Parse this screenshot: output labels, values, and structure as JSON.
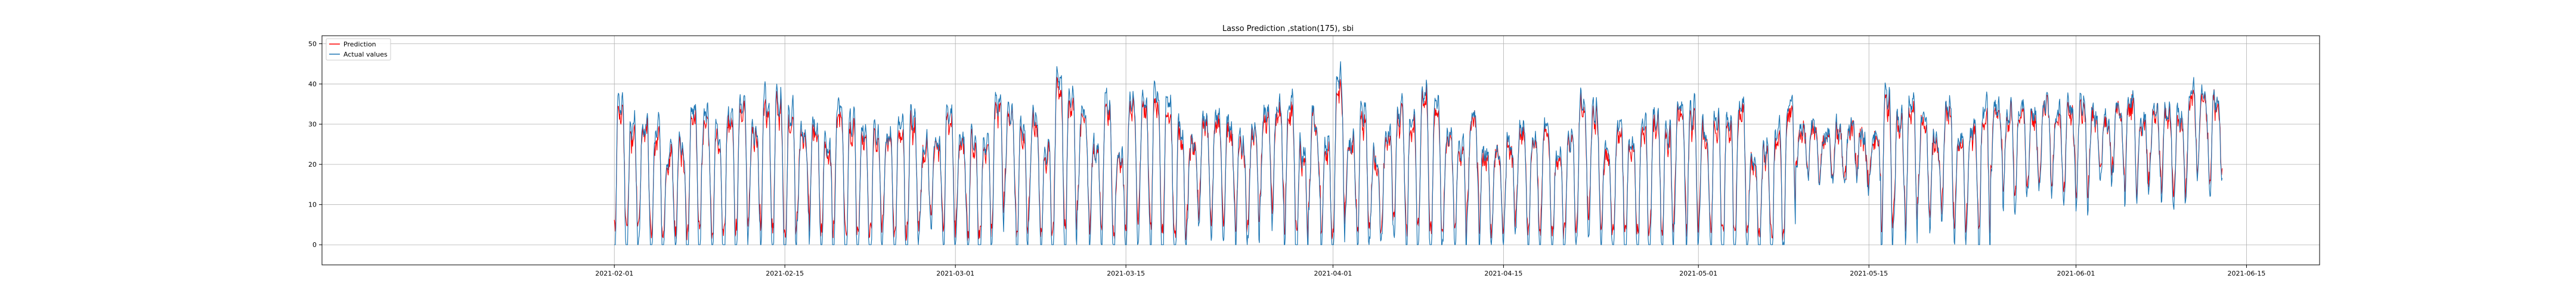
{
  "chart_data": {
    "type": "line",
    "title": "Lasso Prediction ,station(175), sbi",
    "xlabel": "",
    "ylabel": "",
    "x_ticks": [
      "2021-02-01",
      "2021-02-15",
      "2021-03-01",
      "2021-03-15",
      "2021-04-01",
      "2021-04-15",
      "2021-05-01",
      "2021-05-15",
      "2021-06-01",
      "2021-06-15"
    ],
    "y_ticks": [
      0,
      10,
      20,
      30,
      40,
      50
    ],
    "xlim_days": [
      -24,
      140
    ],
    "ylim": [
      -5,
      52
    ],
    "data_range_days": [
      0,
      132
    ],
    "grid": true,
    "legend_position": "top-left",
    "series": [
      {
        "name": "Prediction",
        "color": "#ff0000",
        "description": "hourly predicted sbi, ranges roughly 0 to 47"
      },
      {
        "name": "Actual values",
        "color": "#1f77b4",
        "description": "hourly observed sbi, ranges roughly 0 to 50"
      }
    ]
  }
}
